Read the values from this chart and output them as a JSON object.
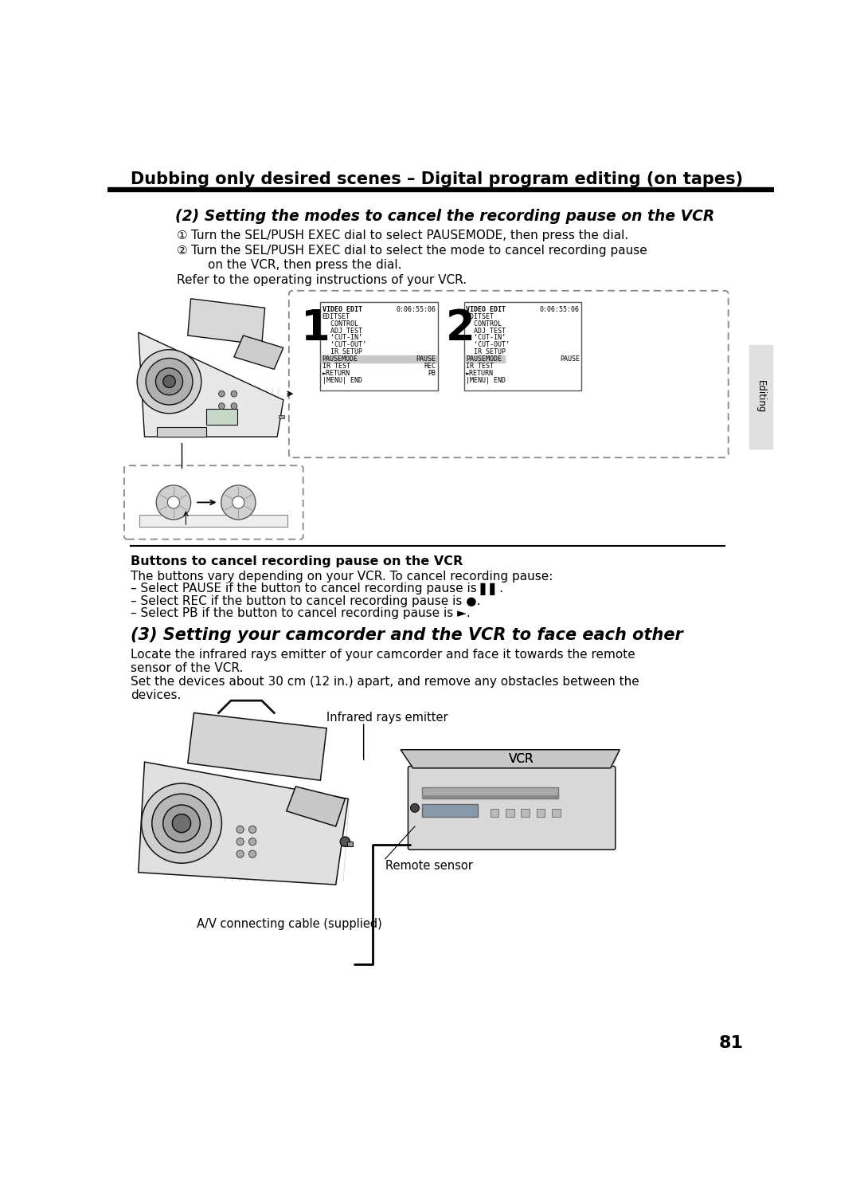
{
  "page_width": 10.8,
  "page_height": 14.87,
  "bg_color": "#ffffff",
  "header_title": "Dubbing only desired scenes – Digital program editing (on tapes)",
  "section2_title": "(2) Setting the modes to cancel the recording pause on the VCR",
  "step1_circle": "①",
  "step1_text": "Turn the SEL/PUSH EXEC dial to select PAUSEMODE, then press the dial.",
  "step2_circle": "②",
  "step2_line1": "Turn the SEL/PUSH EXEC dial to select the mode to cancel recording pause",
  "step2_line2": "on the VCR, then press the dial.",
  "refer_text": "Refer to the operating instructions of your VCR.",
  "screen1_rows": [
    [
      "VIDEO EDIT",
      "0:06:55:06"
    ],
    [
      "EDITSET",
      ""
    ],
    [
      "  CONTROL",
      ""
    ],
    [
      "  ADJ TEST",
      ""
    ],
    [
      "  ‘CUT-IN’",
      ""
    ],
    [
      "  ‘CUT-OUT’",
      ""
    ],
    [
      "  IR SETUP",
      ""
    ],
    [
      "PAUSEMODE",
      "PAUSE"
    ],
    [
      "IR TEST",
      "REC"
    ],
    [
      "►RETURN",
      "PB"
    ],
    [
      "|MENU| END",
      ""
    ]
  ],
  "screen2_rows": [
    [
      "VIDEO EDIT",
      "0:06:55:06"
    ],
    [
      "EDITSET",
      ""
    ],
    [
      "  CONTROL",
      ""
    ],
    [
      "  ADJ TEST",
      ""
    ],
    [
      "  ‘CUT-IN’",
      ""
    ],
    [
      "  ‘CUT-OUT’",
      ""
    ],
    [
      "  IR SETUP",
      ""
    ],
    [
      "PAUSEMODE",
      "PAUSE"
    ],
    [
      "IR TEST",
      ""
    ],
    [
      "►RETURN",
      ""
    ],
    [
      "|MENU| END",
      ""
    ]
  ],
  "note_title": "Buttons to cancel recording pause on the VCR",
  "note_body": "The buttons vary depending on your VCR. To cancel recording pause:",
  "note_items": [
    "– Select PAUSE if the button to cancel recording pause is ▌▌.",
    "– Select REC if the button to cancel recording pause is ●.",
    "– Select PB if the button to cancel recording pause is ►."
  ],
  "section3_title": "(3) Setting your camcorder and the VCR to face each other",
  "section3_body": [
    "Locate the infrared rays emitter of your camcorder and face it towards the remote",
    "sensor of the VCR.",
    "Set the devices about 30 cm (12 in.) apart, and remove any obstacles between the",
    "devices."
  ],
  "label_infrared": "Infrared rays emitter",
  "label_vcr": "VCR",
  "label_remote": "Remote sensor",
  "label_cable": "A/V connecting cable (supplied)",
  "page_number": "81",
  "sidebar_text": "Editing"
}
